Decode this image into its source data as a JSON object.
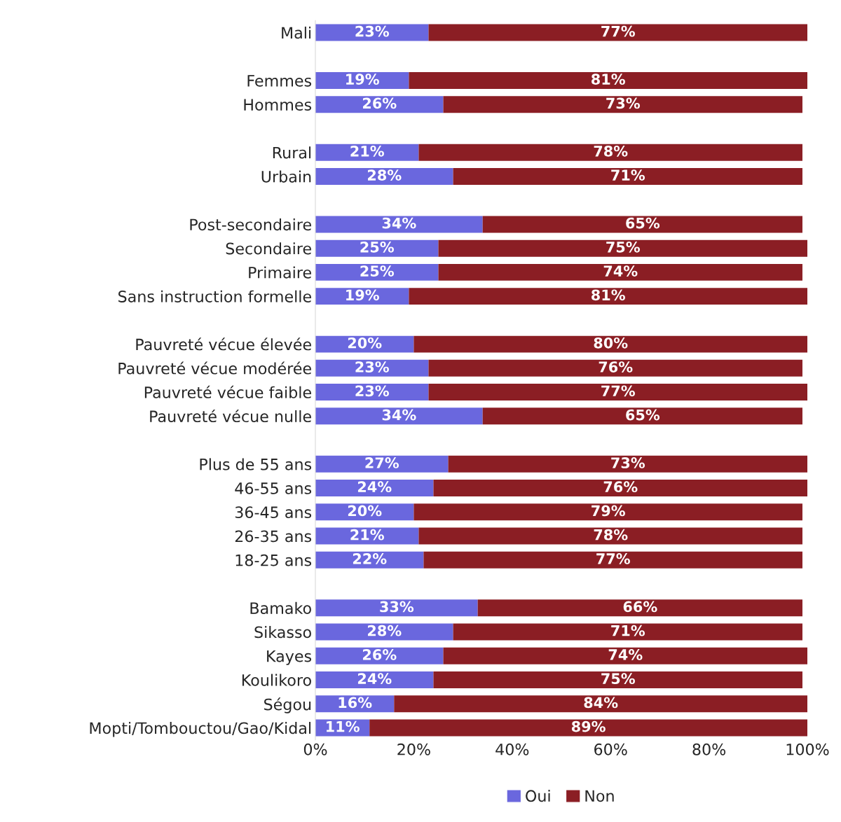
{
  "chart_data": {
    "type": "bar",
    "orientation": "horizontal",
    "stacked": true,
    "categories": [
      "Mali",
      null,
      "Femmes",
      "Hommes",
      null,
      "Rural",
      "Urbain",
      null,
      "Post-secondaire",
      "Secondaire",
      "Primaire",
      "Sans instruction formelle",
      null,
      "Pauvreté vécue élevée",
      "Pauvreté vécue modérée",
      "Pauvreté vécue faible",
      "Pauvreté vécue nulle",
      null,
      "Plus de 55 ans",
      "46-55 ans",
      "36-45 ans",
      "26-35 ans",
      "18-25 ans",
      null,
      "Bamako",
      "Sikasso",
      "Kayes",
      "Koulikoro",
      "Ségou",
      "Mopti/Tombouctou/Gao/Kidal"
    ],
    "series": [
      {
        "name": "Oui",
        "color": "#6a67de",
        "values": [
          23,
          null,
          19,
          26,
          null,
          21,
          28,
          null,
          34,
          25,
          25,
          19,
          null,
          20,
          23,
          23,
          34,
          null,
          27,
          24,
          20,
          21,
          22,
          null,
          33,
          28,
          26,
          24,
          16,
          11
        ],
        "value_labels": [
          "23%",
          null,
          "19%",
          "26%",
          null,
          "21%",
          "28%",
          null,
          "34%",
          "25%",
          "25%",
          "19%",
          null,
          "20%",
          "23%",
          "23%",
          "34%",
          null,
          "27%",
          "24%",
          "20%",
          "21%",
          "22%",
          null,
          "33%",
          "28%",
          "26%",
          "24%",
          "16%",
          "11%"
        ]
      },
      {
        "name": "Non",
        "color": "#8b1e24",
        "values": [
          77,
          null,
          81,
          73,
          null,
          78,
          71,
          null,
          65,
          75,
          74,
          81,
          null,
          80,
          76,
          77,
          65,
          null,
          73,
          76,
          79,
          78,
          77,
          null,
          66,
          71,
          74,
          75,
          84,
          89
        ],
        "value_labels": [
          "77%",
          null,
          "81%",
          "73%",
          null,
          "78%",
          "71%",
          null,
          "65%",
          "75%",
          "74%",
          "81%",
          null,
          "80%",
          "76%",
          "77%",
          "65%",
          null,
          "73%",
          "76%",
          "79%",
          "78%",
          "77%",
          null,
          "66%",
          "71%",
          "74%",
          "75%",
          "84%",
          "89%"
        ]
      }
    ],
    "xlim": [
      0,
      100
    ],
    "xticks": [
      {
        "value": 0,
        "label": "0%"
      },
      {
        "value": 20,
        "label": "20%"
      },
      {
        "value": 40,
        "label": "40%"
      },
      {
        "value": 60,
        "label": "60%"
      },
      {
        "value": 80,
        "label": "80%"
      },
      {
        "value": 100,
        "label": "100%"
      }
    ],
    "grid": false,
    "legend": "bottom"
  }
}
